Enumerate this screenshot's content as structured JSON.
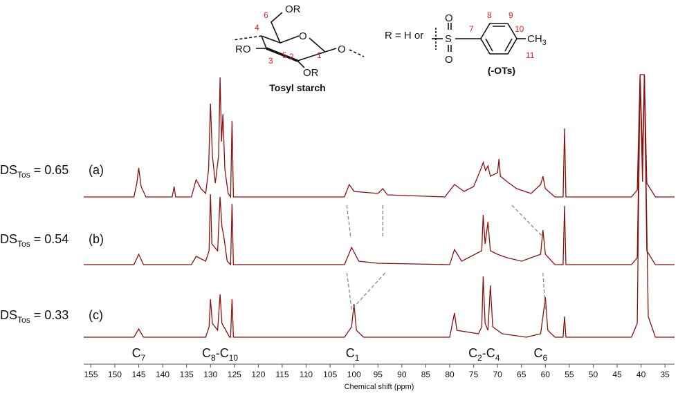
{
  "chart_data": {
    "type": "line",
    "x_label": "Chemical shift (ppm)",
    "xlim": [
      156.5,
      33
    ],
    "xticks": [
      155,
      150,
      145,
      140,
      135,
      130,
      125,
      120,
      115,
      110,
      105,
      100,
      95,
      90,
      85,
      80,
      75,
      70,
      65,
      60,
      55,
      50,
      45,
      40,
      35
    ],
    "series": [
      {
        "label": [
          "DS",
          "Tos",
          " = 0.65"
        ],
        "tag": "(a)",
        "color": "#8b0f0f",
        "x": [
          156.5,
          146,
          145.4,
          145,
          144.5,
          143.5,
          138,
          137.6,
          137.3,
          134,
          133,
          132,
          131,
          130.4,
          130,
          129.6,
          129,
          128.3,
          128,
          127.7,
          127.4,
          127,
          126.3,
          125.8,
          125.5,
          125.2,
          102,
          101,
          100,
          95,
          94,
          93,
          81,
          79,
          77,
          75,
          73.5,
          73,
          72.5,
          72,
          71.5,
          70,
          69.7,
          69.4,
          68,
          66,
          63,
          61,
          60.5,
          60,
          58,
          56.3,
          56,
          55.7,
          42,
          40.8,
          40.2,
          39.7,
          39.3,
          38.8,
          37,
          33
        ],
        "values": [
          0,
          0,
          20,
          42,
          15,
          0,
          0,
          15,
          0,
          0,
          25,
          12,
          5,
          40,
          135,
          60,
          20,
          60,
          173,
          80,
          120,
          40,
          5,
          0,
          110,
          0,
          0,
          18,
          8,
          5,
          12,
          3,
          0,
          18,
          8,
          15,
          40,
          50,
          38,
          45,
          30,
          35,
          55,
          30,
          22,
          12,
          5,
          18,
          30,
          12,
          0,
          0,
          99,
          0,
          0,
          10,
          177,
          60,
          177,
          20,
          0,
          0
        ]
      },
      {
        "label": [
          "DS",
          "Tos",
          " = 0.54"
        ],
        "tag": "(b)",
        "color": "#8b0f0f",
        "x": [
          156.5,
          146,
          145,
          144,
          134,
          133,
          131,
          130.3,
          130,
          129.7,
          128.5,
          128,
          127.6,
          127.2,
          126.5,
          125.8,
          125.5,
          125.2,
          102,
          100.5,
          99,
          95,
          80,
          79,
          77.5,
          73.3,
          73,
          72.6,
          72,
          71.5,
          70,
          68,
          65,
          61,
          60.5,
          60,
          58,
          56.3,
          56,
          55.7,
          42,
          40.8,
          40.2,
          39.7,
          39.3,
          38.8,
          37,
          33
        ],
        "values": [
          0,
          0,
          15,
          0,
          0,
          12,
          5,
          20,
          102,
          30,
          20,
          98,
          55,
          40,
          5,
          0,
          88,
          0,
          0,
          25,
          5,
          2,
          0,
          22,
          5,
          20,
          72,
          30,
          62,
          20,
          15,
          10,
          5,
          15,
          50,
          15,
          0,
          0,
          85,
          0,
          0,
          10,
          275,
          120,
          275,
          20,
          0,
          0
        ]
      },
      {
        "label": [
          "DS",
          "Tos",
          " = 0.33"
        ],
        "tag": "(c)",
        "color": "#8b0f0f",
        "x": [
          156.5,
          146,
          145,
          144,
          131,
          130.3,
          130,
          129.6,
          128.5,
          128,
          127.6,
          126,
          125.8,
          125.5,
          125.2,
          102,
          100.5,
          100,
          99.5,
          98,
          80,
          79,
          78.5,
          74,
          73.3,
          73,
          72.6,
          72,
          71.5,
          71,
          69,
          64,
          61,
          60.5,
          60,
          59.5,
          58,
          56.3,
          56,
          55.7,
          42,
          40.8,
          40.2,
          39.3,
          38.5,
          37,
          33
        ],
        "values": [
          0,
          0,
          12,
          0,
          0,
          15,
          55,
          20,
          10,
          62,
          20,
          0,
          0,
          55,
          0,
          0,
          15,
          48,
          10,
          0,
          0,
          35,
          10,
          5,
          15,
          88,
          20,
          10,
          75,
          15,
          5,
          0,
          5,
          30,
          58,
          10,
          0,
          0,
          30,
          0,
          0,
          20,
          380,
          380,
          30,
          0,
          0
        ]
      }
    ],
    "guides": [
      {
        "x": [
          101.5,
          100.7
        ],
        "rows": [
          0,
          1
        ]
      },
      {
        "x": [
          94,
          94
        ],
        "rows": [
          0,
          1
        ]
      },
      {
        "x": [
          93.5,
          100.5
        ],
        "rows": [
          1,
          2
        ]
      },
      {
        "x": [
          101.5,
          100.5
        ],
        "rows": [
          1,
          2
        ]
      },
      {
        "x": [
          67,
          60.5
        ],
        "rows": [
          0,
          1
        ]
      },
      {
        "x": [
          60.5,
          60
        ],
        "rows": [
          1,
          2
        ]
      }
    ],
    "annotations": [
      {
        "x": 145,
        "text": [
          "C",
          "7"
        ]
      },
      {
        "x": 128,
        "text": [
          "C",
          "8",
          "-C",
          "10"
        ]
      },
      {
        "x": 100.3,
        "text": [
          "C",
          "1"
        ]
      },
      {
        "x": 72.8,
        "text": [
          "C",
          "2",
          "-C",
          "4"
        ]
      },
      {
        "x": 61,
        "text": [
          "C",
          "6"
        ]
      }
    ]
  },
  "structure": {
    "title": "Tosyl starch",
    "glucose": [
      "6",
      "OR",
      "4",
      "5",
      "O",
      "1",
      "O",
      "RO",
      "3",
      "2",
      "OR"
    ],
    "r_def": "R = H or",
    "tosyl": [
      "S",
      "O",
      "O",
      "7",
      "8",
      "9",
      "10",
      "CH",
      "3",
      "11"
    ],
    "tosyl_name": "(-OTs)"
  }
}
